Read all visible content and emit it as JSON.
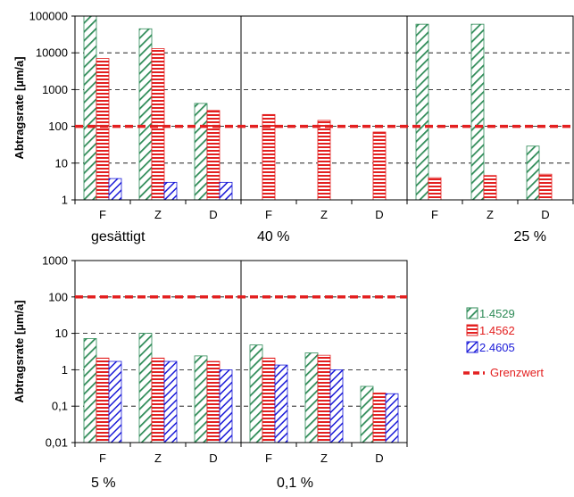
{
  "colors": {
    "s1_stroke": "#2e8b57",
    "s2_stroke": "#e32020",
    "s3_stroke": "#1a1ad8",
    "limit": "#e32020",
    "grid": "#000000"
  },
  "icons": {
    "s1": "green-diagonal-hatch-swatch",
    "s2": "red-horizontal-stripe-swatch",
    "s3": "blue-diagonal-hatch-swatch"
  },
  "chart_data": [
    {
      "type": "bar",
      "scale": "log",
      "ylabel": "Abtragsrate [µm/a]",
      "ylim": [
        1,
        100000
      ],
      "yticks": [
        "1",
        "10",
        "100",
        "1000",
        "10000",
        "100000"
      ],
      "grid": "dashed-horizontal",
      "limit_value": 100,
      "panels": [
        {
          "label": "gesättigt",
          "label_align": "left",
          "categories": [
            "F",
            "Z",
            "D"
          ],
          "series": [
            {
              "name": "1.4529",
              "values": [
                100000,
                45000,
                420
              ]
            },
            {
              "name": "1.4562",
              "values": [
                7000,
                13000,
                270
              ]
            },
            {
              "name": "2.4605",
              "values": [
                3.8,
                3.0,
                3.0
              ]
            }
          ]
        },
        {
          "label": "40 %",
          "label_align": "left",
          "categories": [
            "F",
            "Z",
            "D"
          ],
          "series": [
            {
              "name": "1.4529",
              "values": [
                null,
                null,
                null
              ]
            },
            {
              "name": "1.4562",
              "values": [
                210,
                145,
                70
              ]
            },
            {
              "name": "2.4605",
              "values": [
                null,
                null,
                null
              ]
            }
          ]
        },
        {
          "label": "25 %",
          "label_align": "right",
          "categories": [
            "F",
            "Z",
            "D"
          ],
          "series": [
            {
              "name": "1.4529",
              "values": [
                60000,
                60000,
                29
              ]
            },
            {
              "name": "1.4562",
              "values": [
                4.0,
                4.6,
                5.0
              ]
            },
            {
              "name": "2.4605",
              "values": [
                null,
                null,
                null
              ]
            }
          ]
        }
      ]
    },
    {
      "type": "bar",
      "scale": "log",
      "ylabel": "Abtragsrate [µm/a]",
      "ylim": [
        0.01,
        1000
      ],
      "yticks": [
        "0,01",
        "0,1",
        "1",
        "10",
        "100",
        "1000"
      ],
      "grid": "dashed-horizontal",
      "limit_value": 100,
      "panels": [
        {
          "label": "5 %",
          "label_align": "left",
          "categories": [
            "F",
            "Z",
            "D"
          ],
          "series": [
            {
              "name": "1.4529",
              "values": [
                7.2,
                10.0,
                2.4
              ]
            },
            {
              "name": "1.4562",
              "values": [
                2.1,
                2.1,
                1.7
              ]
            },
            {
              "name": "2.4605",
              "values": [
                1.7,
                1.7,
                1.0
              ]
            }
          ]
        },
        {
          "label": "0,1 %",
          "label_align": "left",
          "categories": [
            "F",
            "Z",
            "D"
          ],
          "series": [
            {
              "name": "1.4529",
              "values": [
                4.8,
                2.9,
                0.35
              ]
            },
            {
              "name": "1.4562",
              "values": [
                2.1,
                2.5,
                0.23
              ]
            },
            {
              "name": "2.4605",
              "values": [
                1.35,
                1.0,
                0.22
              ]
            }
          ]
        }
      ]
    }
  ],
  "legend": {
    "items": [
      {
        "label": "1.4529",
        "color": "#2e8b57"
      },
      {
        "label": "1.4562",
        "color": "#e32020"
      },
      {
        "label": "2.4605",
        "color": "#1a1ad8"
      },
      {
        "label": "Grenzwert",
        "color": "#e32020"
      }
    ]
  }
}
